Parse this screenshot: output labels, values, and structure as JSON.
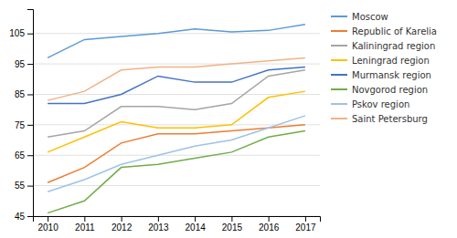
{
  "chart_data": {
    "type": "line",
    "x": [
      2010,
      2011,
      2012,
      2013,
      2014,
      2015,
      2016,
      2017
    ],
    "xlim": [
      2009.6,
      2017.4
    ],
    "xticks": [
      2010,
      2011,
      2012,
      2013,
      2014,
      2015,
      2016,
      2017
    ],
    "ylim": [
      45,
      113
    ],
    "yticks": [
      45,
      55,
      65,
      75,
      85,
      95,
      105
    ],
    "grid": true,
    "legend": "right",
    "series": [
      {
        "name": "Moscow",
        "color": "#5B9BD5",
        "values": [
          97,
          103,
          104,
          105,
          106.5,
          105.5,
          106,
          108
        ]
      },
      {
        "name": "Republic of Karelia",
        "color": "#ED7D31",
        "values": [
          56,
          61,
          69,
          72,
          72,
          73,
          74,
          75
        ]
      },
      {
        "name": "Kaliningrad region",
        "color": "#A5A5A5",
        "values": [
          71,
          73,
          81,
          81,
          80,
          82,
          91,
          93
        ]
      },
      {
        "name": "Leningrad region",
        "color": "#FFC000",
        "values": [
          66,
          71,
          76,
          74,
          74,
          75,
          84,
          86
        ]
      },
      {
        "name": "Murmansk region",
        "color": "#4472C4",
        "values": [
          82,
          82,
          85,
          91,
          89,
          89,
          93,
          94
        ]
      },
      {
        "name": "Novgorod region",
        "color": "#70AD47",
        "values": [
          46,
          50,
          61,
          62,
          64,
          66,
          71,
          73
        ]
      },
      {
        "name": "Pskov region",
        "color": "#9DC3E6",
        "values": [
          53,
          57,
          62,
          65,
          68,
          70,
          74,
          78
        ]
      },
      {
        "name": "Saint Petersburg",
        "color": "#F4B183",
        "values": [
          83,
          86,
          93,
          94,
          94,
          95,
          96,
          97
        ]
      }
    ]
  }
}
